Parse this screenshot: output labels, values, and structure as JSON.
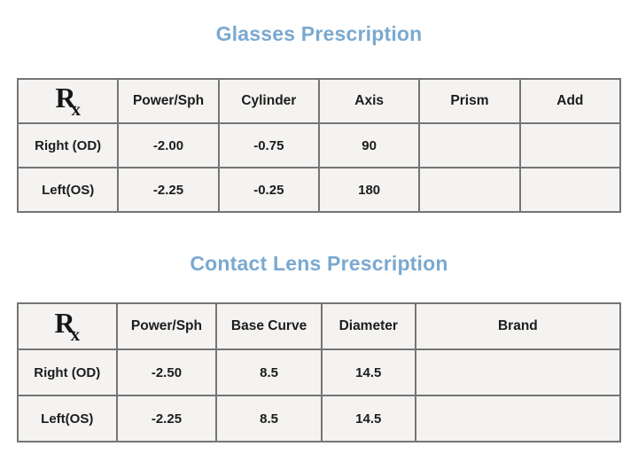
{
  "colors": {
    "title_blue": "#7aa9d0",
    "value_orange": "#f1a33b",
    "border_gray": "#757575",
    "cell_background": "#f4f3f1",
    "label_text": "#1c1c1c"
  },
  "rx_symbol": {
    "main": "R",
    "sub": "x"
  },
  "glasses": {
    "title": "Glasses Prescription",
    "columns": [
      "Power/Sph",
      "Cylinder",
      "Axis",
      "Prism",
      "Add"
    ],
    "rows": [
      {
        "label": "Right (OD)",
        "values": [
          "-2.00",
          "-0.75",
          "90",
          "",
          ""
        ]
      },
      {
        "label": "Left(OS)",
        "values": [
          "-2.25",
          "-0.25",
          "180",
          "",
          ""
        ]
      }
    ]
  },
  "contacts": {
    "title": "Contact Lens Prescription",
    "columns": [
      "Power/Sph",
      "Base Curve",
      "Diameter",
      "Brand"
    ],
    "rows": [
      {
        "label": "Right (OD)",
        "values": [
          "-2.50",
          "8.5",
          "14.5",
          ""
        ]
      },
      {
        "label": "Left(OS)",
        "values": [
          "-2.25",
          "8.5",
          "14.5",
          ""
        ]
      }
    ]
  }
}
